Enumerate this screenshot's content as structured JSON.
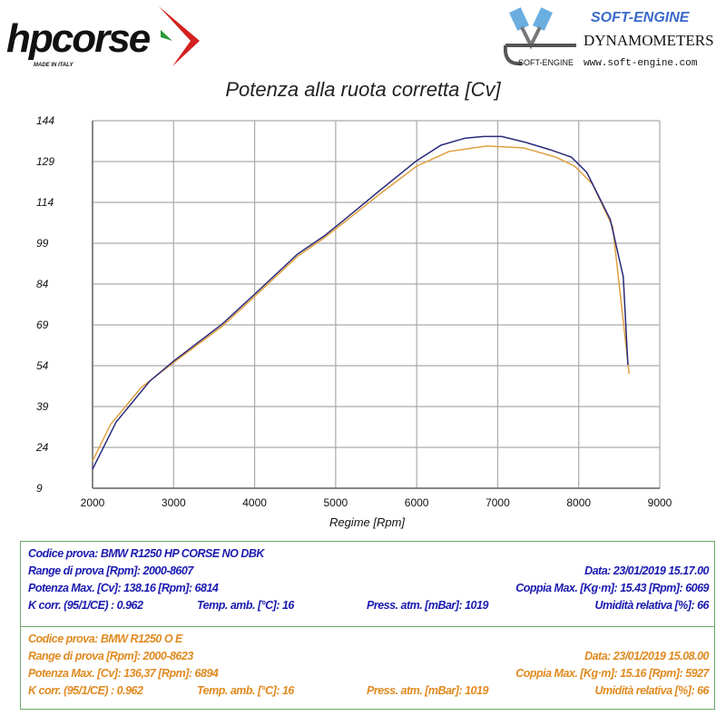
{
  "logos": {
    "left": "hpcorse",
    "left_sub": "MADE IN ITALY",
    "right_brand": "SOFT-ENGINE",
    "right_title": "DYNAMOMETERS",
    "right_small": "SOFT-ENGINE",
    "right_url": "www.soft-engine.com"
  },
  "chart_data": {
    "type": "line",
    "title": "Potenza alla ruota corretta [Cv]",
    "xlabel": "Regime [Rpm]",
    "ylabel": "",
    "xlim": [
      2000,
      9000
    ],
    "ylim": [
      9,
      144
    ],
    "xticks": [
      2000,
      3000,
      4000,
      5000,
      6000,
      7000,
      8000,
      9000
    ],
    "yticks": [
      9,
      24,
      39,
      54,
      69,
      84,
      99,
      114,
      129,
      144
    ],
    "grid": true,
    "colors": {
      "series1": "#2a2a7a",
      "series2": "#e0a040"
    },
    "series": [
      {
        "points": [
          [
            2000,
            16
          ],
          [
            2290,
            33.3
          ],
          [
            2705,
            48.3
          ],
          [
            3000,
            55.7
          ],
          [
            3600,
            69.3
          ],
          [
            3990,
            80
          ],
          [
            4530,
            95
          ],
          [
            4860,
            101.7
          ],
          [
            5110,
            107.7
          ],
          [
            5550,
            118.5
          ],
          [
            6000,
            129.3
          ],
          [
            6300,
            135
          ],
          [
            6600,
            137.6
          ],
          [
            6830,
            138.2
          ],
          [
            7050,
            138.2
          ],
          [
            7350,
            136
          ],
          [
            7650,
            133.3
          ],
          [
            7910,
            130.6
          ],
          [
            8100,
            125
          ],
          [
            8390,
            107.7
          ],
          [
            8550,
            86.7
          ],
          [
            8607,
            54.3
          ]
        ]
      },
      {
        "points": [
          [
            2000,
            19
          ],
          [
            2220,
            32.3
          ],
          [
            2600,
            46
          ],
          [
            3000,
            55.2
          ],
          [
            3600,
            68.5
          ],
          [
            3990,
            79.2
          ],
          [
            4530,
            94.2
          ],
          [
            4860,
            101
          ],
          [
            5110,
            106.8
          ],
          [
            5550,
            117.2
          ],
          [
            6000,
            127.3
          ],
          [
            6400,
            132.7
          ],
          [
            6870,
            134.7
          ],
          [
            7320,
            134
          ],
          [
            7720,
            130.6
          ],
          [
            7950,
            127.3
          ],
          [
            8170,
            120.7
          ],
          [
            8420,
            105
          ],
          [
            8623,
            51
          ]
        ]
      }
    ]
  },
  "tests": [
    {
      "codice": "Codice prova: BMW R1250 HP CORSE NO DBK",
      "range": "Range di prova [Rpm]: 2000-8607",
      "data": "Data: 23/01/2019   15.17.00",
      "potenza": "Potenza Max. [Cv]: 138.16   [Rpm]: 6814",
      "coppia": "Coppia Max. [Kg·m]: 15.43   [Rpm]: 6069",
      "kcorr": "K corr. (95/1/CE) : 0.962",
      "temp": "Temp. amb. [°C]: 16",
      "press": "Press. atm. [mBar]: 1019",
      "umid": "Umidità relativa [%]: 66"
    },
    {
      "codice": "Codice prova: BMW R1250 O E",
      "range": "Range di prova [Rpm]: 2000-8623",
      "data": "Data: 23/01/2019   15.08.00",
      "potenza": "Potenza Max. [Cv]: 136,37   [Rpm]: 6894",
      "coppia": "Coppia Max. [Kg·m]: 15.16   [Rpm]: 5927",
      "kcorr": "K corr. (95/1/CE) : 0.962",
      "temp": "Temp. amb. [°C]: 16",
      "press": "Press. atm. [mBar]: 1019",
      "umid": "Umidità relativa [%]: 66"
    }
  ]
}
